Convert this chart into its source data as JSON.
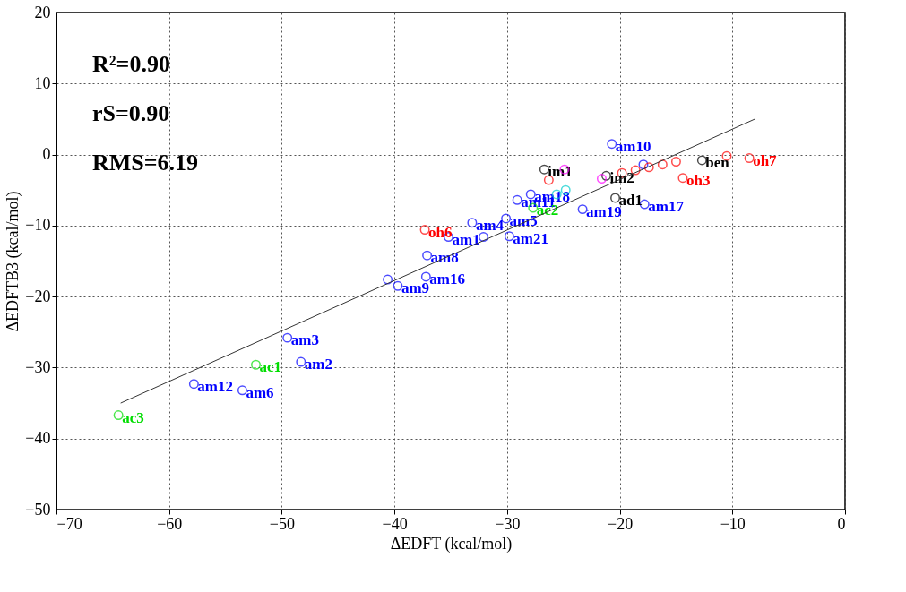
{
  "chart_data": {
    "type": "scatter",
    "xlabel": "ΔEDFT (kcal/mol)",
    "ylabel": "ΔEDFTB3 (kcal/mol)",
    "xlim": [
      -70,
      0
    ],
    "ylim": [
      -50,
      20
    ],
    "xticks": [
      -70,
      -60,
      -50,
      -40,
      -30,
      -20,
      -10,
      0
    ],
    "yticks": [
      -50,
      -40,
      -30,
      -20,
      -10,
      0,
      10,
      20
    ],
    "grid": true,
    "marker": "circle",
    "annotations": [
      "R²=0.90",
      "rS=0.90",
      "RMS=6.19"
    ],
    "series": [
      {
        "color": "#0000ff",
        "x": [
          -20.7,
          -23.3,
          -27.9,
          -29.1,
          -30.1,
          -33.1,
          -35.2,
          -32.1,
          -29.8,
          -37.1,
          -40.6,
          -39.7,
          -37.2,
          -49.5,
          -48.3,
          -57.8,
          -53.5,
          -17.8,
          -17.9
        ],
        "values": [
          1.5,
          -7.7,
          -5.6,
          -6.4,
          -9.0,
          -9.6,
          -11.6,
          -11.6,
          -11.5,
          -14.2,
          -17.6,
          -18.5,
          -17.2,
          -25.8,
          -29.2,
          -32.3,
          -33.2,
          -7.0,
          -1.4
        ],
        "value_labels": [
          "am10",
          "am19",
          "am18",
          "am11",
          "am5",
          "am4",
          "am1",
          null,
          "am21",
          "am8",
          null,
          "am9",
          "am16",
          "am3",
          "am2",
          "am12",
          "am6",
          "am17",
          null
        ]
      },
      {
        "color": "#ff0000",
        "x": [
          -26.3,
          -37.3,
          -14.4,
          -10.5,
          -8.5,
          -19.8,
          -18.6,
          -17.4,
          -16.2,
          -15.0
        ],
        "values": [
          -3.6,
          -10.6,
          -3.3,
          -0.2,
          -0.5,
          -2.6,
          -2.2,
          -1.8,
          -1.4,
          -1.0
        ],
        "value_labels": [
          null,
          "oh6",
          "oh3",
          null,
          "oh7",
          null,
          null,
          null,
          null,
          null
        ]
      },
      {
        "color": "#00dd00",
        "x": [
          -27.7,
          -52.3,
          -64.5
        ],
        "values": [
          -7.5,
          -29.6,
          -36.7
        ],
        "value_labels": [
          "ac2",
          "ac1",
          "ac3"
        ]
      },
      {
        "color": "#000000",
        "x": [
          -26.7,
          -21.2,
          -20.4,
          -12.7
        ],
        "values": [
          -2.1,
          -3.0,
          -6.1,
          -0.8
        ],
        "value_labels": [
          "im1",
          "im2",
          "ad1",
          "ben"
        ]
      },
      {
        "color": "#ff00ff",
        "x": [
          -24.9,
          -21.6
        ],
        "values": [
          -2.1,
          -3.4
        ],
        "value_labels": [
          null,
          null
        ]
      },
      {
        "color": "#00cccc",
        "x": [
          -24.8,
          -25.6
        ],
        "values": [
          -5.0,
          -5.6
        ],
        "value_labels": [
          null,
          null
        ]
      },
      {
        "type": "line",
        "marker": "none",
        "color": "#333333",
        "x": [
          -64.3,
          -8.0
        ],
        "values": [
          -35.0,
          5.0
        ]
      }
    ]
  }
}
